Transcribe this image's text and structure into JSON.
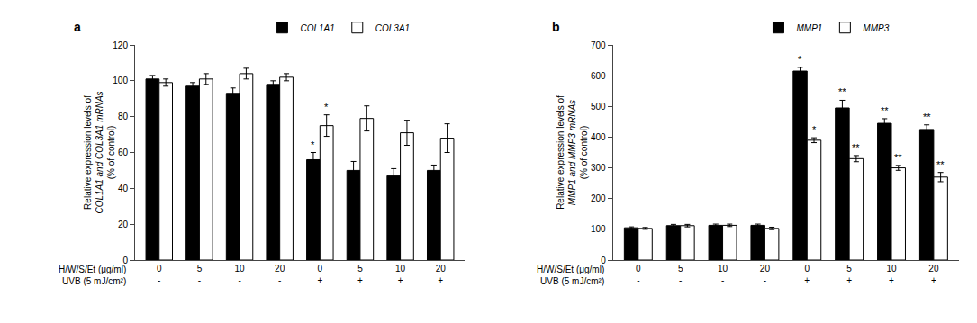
{
  "chart_data": [
    {
      "type": "bar",
      "title": "a",
      "categories": [
        "0",
        "5",
        "10",
        "20",
        "0",
        "5",
        "10",
        "20"
      ],
      "xlabel": "H/W/S/Et (μg/ml)",
      "secondary_categories": {
        "label": "UVB (5 mJ/cm²)",
        "categories": [
          "-",
          "-",
          "-",
          "-",
          "+",
          "+",
          "+",
          "+"
        ]
      },
      "ylabel": [
        "Relative expression levels of",
        "COL1A1 and COL3A1 mRNAs",
        "(% of control)"
      ],
      "ylim": [
        0,
        120
      ],
      "yticks": [
        0,
        20,
        40,
        60,
        80,
        100,
        120
      ],
      "grid": false,
      "legend": "upper center",
      "edge_color": "#000000",
      "series": [
        {
          "name": "COL1A1",
          "color": "#000000",
          "values": [
            101,
            97,
            93,
            98,
            56,
            50,
            47,
            50
          ],
          "errors": [
            2,
            2,
            3,
            2,
            4,
            5,
            4,
            3
          ],
          "significance": [
            null,
            null,
            null,
            null,
            "*",
            null,
            null,
            null
          ]
        },
        {
          "name": "COL3A1",
          "color": "#ffffff",
          "values": [
            99,
            101,
            104,
            102,
            75,
            79,
            71,
            68
          ],
          "errors": [
            2,
            3,
            3,
            2,
            6,
            7,
            7,
            8
          ],
          "significance": [
            null,
            null,
            null,
            null,
            "*",
            null,
            null,
            null
          ]
        }
      ]
    },
    {
      "type": "bar",
      "title": "b",
      "categories": [
        "0",
        "5",
        "10",
        "20",
        "0",
        "5",
        "10",
        "20"
      ],
      "xlabel": "H/W/S/Et (μg/ml)",
      "secondary_categories": {
        "label": "UVB (5 mJ/cm²)",
        "categories": [
          "-",
          "-",
          "-",
          "-",
          "+",
          "+",
          "+",
          "+"
        ]
      },
      "ylabel": [
        "Relative expression levels of",
        "MMP1 and MMP3 mRNAs",
        "(% of control)"
      ],
      "ylim": [
        0,
        700
      ],
      "yticks": [
        0,
        100,
        200,
        300,
        400,
        500,
        600,
        700
      ],
      "grid": false,
      "legend": "upper center",
      "edge_color": "#000000",
      "series": [
        {
          "name": "MMP1",
          "color": "#000000",
          "values": [
            105,
            112,
            113,
            113,
            615,
            495,
            445,
            425
          ],
          "errors": [
            3,
            4,
            4,
            4,
            12,
            25,
            15,
            15
          ],
          "significance": [
            null,
            null,
            null,
            null,
            "*",
            "**",
            "**",
            "**"
          ]
        },
        {
          "name": "MMP3",
          "color": "#ffffff",
          "values": [
            103,
            112,
            113,
            103,
            390,
            330,
            300,
            270
          ],
          "errors": [
            3,
            4,
            4,
            4,
            8,
            10,
            8,
            15
          ],
          "significance": [
            null,
            null,
            null,
            null,
            "*",
            "**",
            "**",
            "**"
          ]
        }
      ]
    }
  ]
}
